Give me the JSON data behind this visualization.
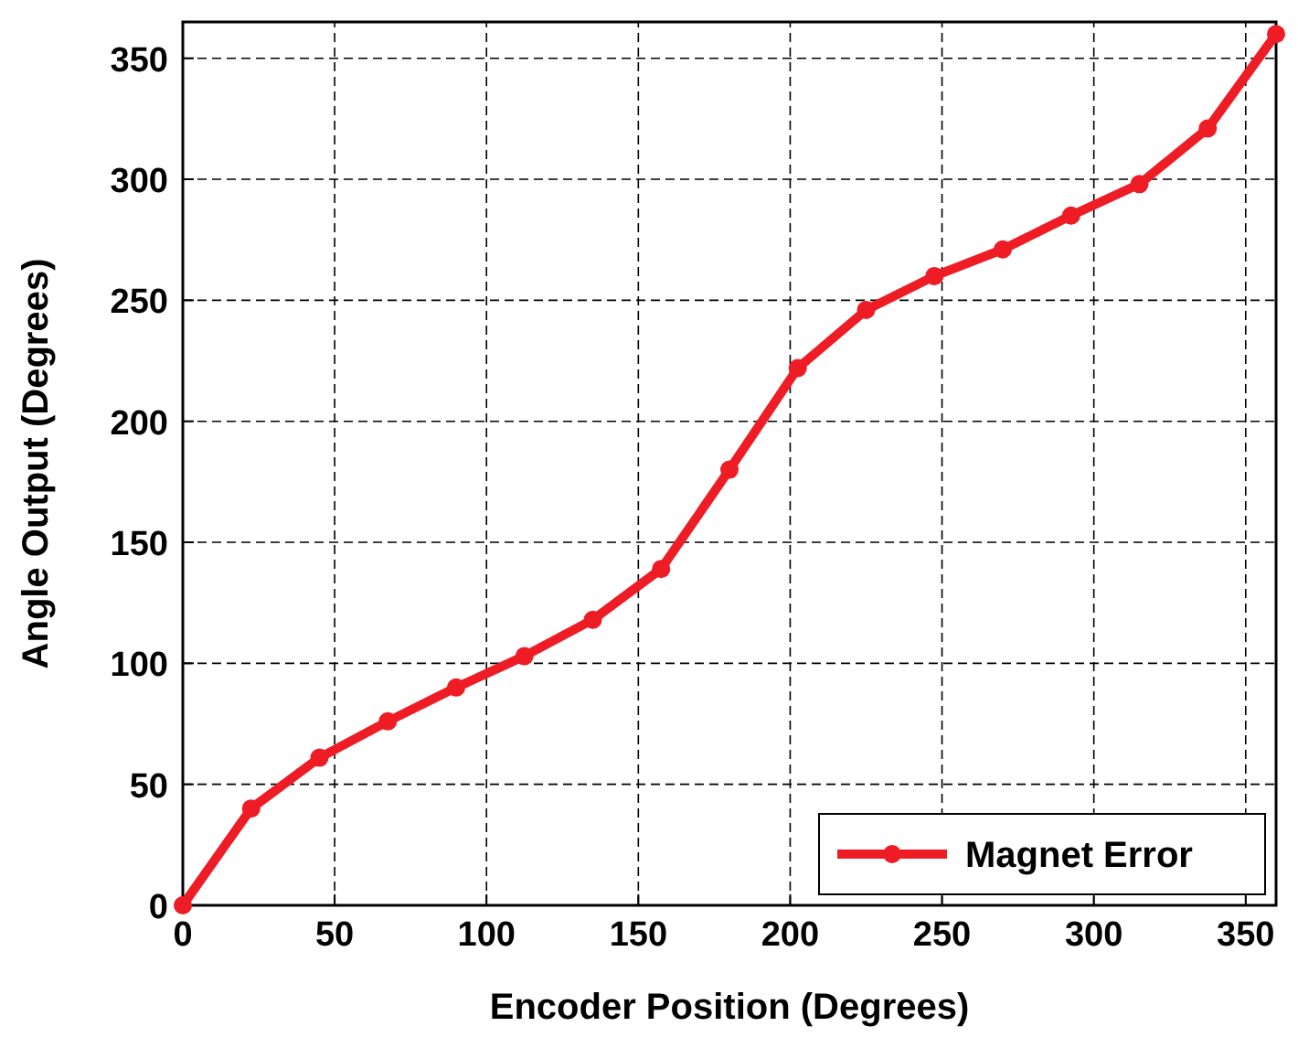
{
  "chart_data": {
    "type": "line",
    "xlabel": "Encoder Position (Degrees)",
    "ylabel": "Angle Output (Degrees)",
    "x": [
      0,
      22.5,
      45,
      67.5,
      90,
      112.5,
      135,
      157.5,
      180,
      202.5,
      225,
      247.5,
      270,
      292.5,
      315,
      337.5,
      360
    ],
    "series": [
      {
        "name": "Magnet Error",
        "color": "#ee1c25",
        "values": [
          0,
          40,
          61,
          76,
          90,
          103,
          118,
          139,
          180,
          222,
          246,
          260,
          271,
          285,
          298,
          321,
          360
        ]
      }
    ],
    "xlim": [
      0,
      360
    ],
    "xticks": [
      0,
      50,
      100,
      150,
      200,
      250,
      300,
      350
    ],
    "ylim": [
      0,
      365
    ],
    "yticks": [
      0,
      50,
      100,
      150,
      200,
      250,
      300,
      350
    ],
    "grid": true,
    "legend": "bottom right",
    "marker": "circle",
    "line_style": "solid"
  }
}
